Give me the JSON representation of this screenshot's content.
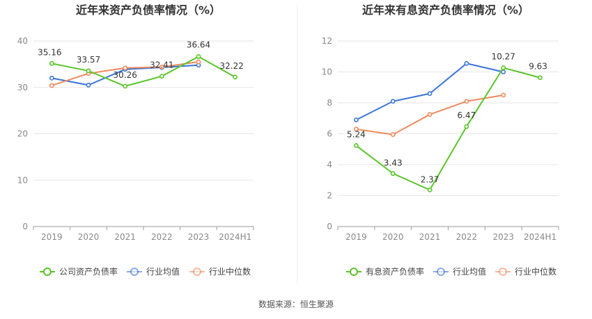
{
  "source_text": "数据来源：恒生聚源",
  "chart_data": [
    {
      "type": "line",
      "title": "近年来资产负债率情况（%）",
      "categories": [
        "2019",
        "2020",
        "2021",
        "2022",
        "2023",
        "2024H1"
      ],
      "ylim": [
        0,
        40
      ],
      "yticks": [
        "0",
        "10",
        "20",
        "30",
        "40"
      ],
      "grid": true,
      "legend_position": "bottom",
      "series": [
        {
          "name": "公司资产负债率",
          "color": "#5ac529",
          "values": [
            35.16,
            33.57,
            30.26,
            32.41,
            36.64,
            32.22
          ],
          "labels": [
            "35.16",
            "33.57",
            "30.26",
            "32.41",
            "36.64",
            "32.22"
          ]
        },
        {
          "name": "行业均值",
          "color": "#3a74d9",
          "values": [
            32.0,
            30.5,
            33.9,
            34.3,
            34.8,
            null
          ]
        },
        {
          "name": "行业中位数",
          "color": "#f08a5d",
          "values": [
            30.4,
            33.0,
            34.2,
            34.4,
            35.5,
            null
          ]
        }
      ]
    },
    {
      "type": "line",
      "title": "近年来有息资产负债率情况（%）",
      "categories": [
        "2019",
        "2020",
        "2021",
        "2022",
        "2023",
        "2024H1"
      ],
      "ylim": [
        0,
        12
      ],
      "yticks": [
        "0",
        "2",
        "4",
        "6",
        "8",
        "10",
        "12"
      ],
      "grid": true,
      "legend_position": "bottom",
      "series": [
        {
          "name": "有息资产负债率",
          "color": "#5ac529",
          "values": [
            5.24,
            3.43,
            2.37,
            6.47,
            10.27,
            9.63
          ],
          "labels": [
            "5.24",
            "3.43",
            "2.37",
            "6.47",
            "10.27",
            "9.63"
          ]
        },
        {
          "name": "行业均值",
          "color": "#3a74d9",
          "values": [
            6.9,
            8.1,
            8.6,
            10.55,
            10.0,
            null
          ]
        },
        {
          "name": "行业中位数",
          "color": "#f08a5d",
          "values": [
            6.3,
            5.95,
            7.25,
            8.1,
            8.5,
            null
          ]
        }
      ]
    }
  ]
}
